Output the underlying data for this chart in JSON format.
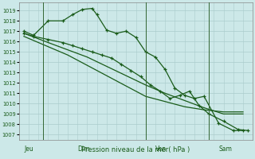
{
  "background_color": "#cce8e8",
  "grid_color": "#aacccc",
  "line_color": "#1a5c1a",
  "marker_color": "#1a5c1a",
  "title": "Pression niveau de la mer( hPa )",
  "xlabel_day_labels": [
    "Jeu",
    "Dim",
    "Ven",
    "Sam"
  ],
  "xlabel_day_positions": [
    0.5,
    6.0,
    14.0,
    20.5
  ],
  "vline_positions": [
    2.5,
    13.0,
    19.5
  ],
  "ylim": [
    1006.5,
    1019.8
  ],
  "yticks": [
    1007,
    1008,
    1009,
    1010,
    1011,
    1012,
    1013,
    1014,
    1015,
    1016,
    1017,
    1018,
    1019
  ],
  "xlim": [
    0,
    24
  ],
  "series1_x": [
    0.5,
    1.5,
    3.0,
    4.5,
    5.5,
    6.5,
    7.5,
    8.0,
    9.0,
    10.0,
    11.0,
    12.0,
    13.0,
    14.0,
    15.0,
    16.0,
    17.0,
    18.0,
    19.0,
    20.5,
    22.0,
    23.0
  ],
  "series1_y": [
    1017.0,
    1016.6,
    1018.0,
    1018.0,
    1018.6,
    1019.1,
    1019.2,
    1018.6,
    1017.1,
    1016.8,
    1017.0,
    1016.4,
    1015.0,
    1014.5,
    1013.3,
    1011.5,
    1010.8,
    1010.5,
    1010.7,
    1008.1,
    1007.4,
    1007.4
  ],
  "series1_marker": true,
  "series2_x": [
    0.5,
    1.5,
    3.0,
    4.5,
    5.5,
    6.5,
    7.5,
    8.5,
    9.5,
    10.5,
    11.5,
    12.5,
    13.5,
    14.5,
    15.5,
    16.5,
    17.5,
    18.5,
    19.5,
    21.0,
    22.5,
    23.5
  ],
  "series2_y": [
    1016.8,
    1016.5,
    1016.2,
    1015.9,
    1015.6,
    1015.3,
    1015.0,
    1014.7,
    1014.4,
    1013.8,
    1013.2,
    1012.6,
    1011.8,
    1011.2,
    1010.5,
    1010.8,
    1011.2,
    1009.8,
    1009.0,
    1008.3,
    1007.5,
    1007.4
  ],
  "series2_marker": true,
  "series3_x": [
    0.5,
    3.0,
    5.0,
    7.0,
    9.0,
    11.0,
    13.0,
    15.0,
    17.0,
    19.0,
    21.0,
    23.0
  ],
  "series3_y": [
    1016.8,
    1015.9,
    1015.2,
    1014.5,
    1013.6,
    1012.7,
    1011.8,
    1011.0,
    1010.3,
    1009.6,
    1009.0,
    1009.0
  ],
  "series3_marker": false,
  "series4_x": [
    0.5,
    3.0,
    5.0,
    7.0,
    9.0,
    11.0,
    13.0,
    15.0,
    17.0,
    19.0,
    21.0,
    23.0
  ],
  "series4_y": [
    1016.5,
    1015.5,
    1014.7,
    1013.7,
    1012.7,
    1011.7,
    1010.7,
    1010.2,
    1009.7,
    1009.4,
    1009.2,
    1009.2
  ],
  "series4_marker": false,
  "figsize": [
    3.2,
    2.0
  ],
  "dpi": 100
}
